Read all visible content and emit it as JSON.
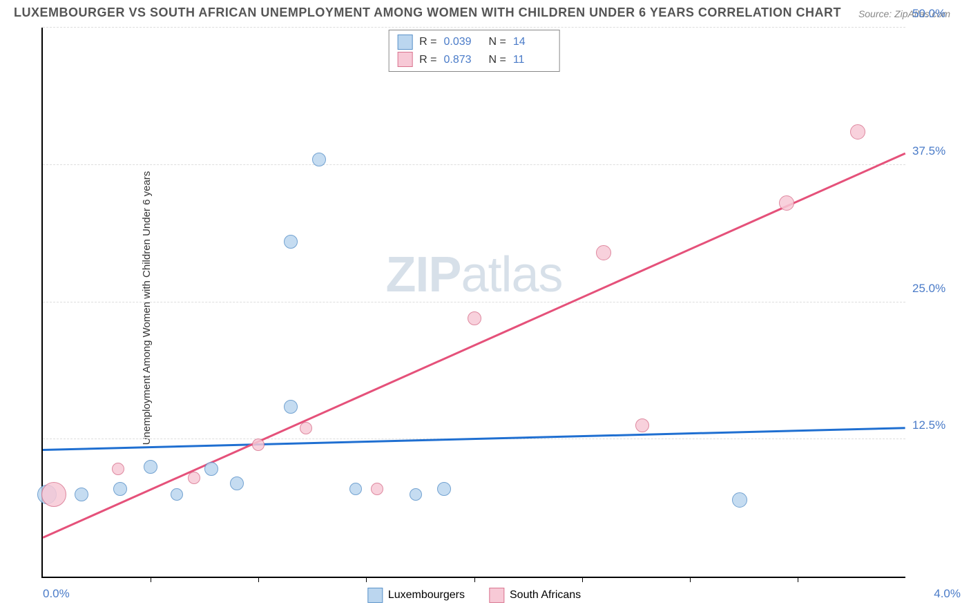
{
  "title": "LUXEMBOURGER VS SOUTH AFRICAN UNEMPLOYMENT AMONG WOMEN WITH CHILDREN UNDER 6 YEARS CORRELATION CHART",
  "source": "Source: ZipAtlas.com",
  "ylabel": "Unemployment Among Women with Children Under 6 years",
  "watermark_zip": "ZIP",
  "watermark_atlas": "atlas",
  "chart": {
    "type": "scatter",
    "xlim": [
      0,
      4.0
    ],
    "ylim": [
      0,
      50.0
    ],
    "x_tick_positions": [
      0.5,
      1.0,
      1.5,
      2.0,
      2.5,
      3.0,
      3.5
    ],
    "x_axis_min_label": "0.0%",
    "x_axis_max_label": "4.0%",
    "y_ticks": [
      {
        "v": 12.5,
        "label": "12.5%"
      },
      {
        "v": 25.0,
        "label": "25.0%"
      },
      {
        "v": 37.5,
        "label": "37.5%"
      },
      {
        "v": 50.0,
        "label": "50.0%"
      }
    ],
    "background_color": "#ffffff",
    "grid_color": "#dddddd",
    "axis_color": "#000000",
    "series": [
      {
        "name": "Luxembourgers",
        "fill_color": "#bbd6ef",
        "stroke_color": "#5a92c9",
        "trend_color": "#1f6fd1",
        "R": "0.039",
        "N": "14",
        "trend": {
          "x1": 0.0,
          "y1": 11.5,
          "x2": 4.0,
          "y2": 13.5
        },
        "points": [
          {
            "x": 0.02,
            "y": 7.5,
            "r": 14
          },
          {
            "x": 0.18,
            "y": 7.5,
            "r": 10
          },
          {
            "x": 0.36,
            "y": 8.0,
            "r": 10
          },
          {
            "x": 0.5,
            "y": 10.0,
            "r": 10
          },
          {
            "x": 0.62,
            "y": 7.5,
            "r": 9
          },
          {
            "x": 0.78,
            "y": 9.8,
            "r": 10
          },
          {
            "x": 0.9,
            "y": 8.5,
            "r": 10
          },
          {
            "x": 1.15,
            "y": 15.5,
            "r": 10
          },
          {
            "x": 1.15,
            "y": 30.5,
            "r": 10
          },
          {
            "x": 1.28,
            "y": 38.0,
            "r": 10
          },
          {
            "x": 1.45,
            "y": 8.0,
            "r": 9
          },
          {
            "x": 1.73,
            "y": 7.5,
            "r": 9
          },
          {
            "x": 1.86,
            "y": 8.0,
            "r": 10
          },
          {
            "x": 3.23,
            "y": 7.0,
            "r": 11
          }
        ]
      },
      {
        "name": "South Africans",
        "fill_color": "#f7c9d6",
        "stroke_color": "#d9748f",
        "trend_color": "#e5517a",
        "R": "0.873",
        "N": "11",
        "trend": {
          "x1": 0.0,
          "y1": 3.5,
          "x2": 4.0,
          "y2": 38.5
        },
        "points": [
          {
            "x": 0.05,
            "y": 7.5,
            "r": 18
          },
          {
            "x": 0.35,
            "y": 9.8,
            "r": 9
          },
          {
            "x": 0.7,
            "y": 9.0,
            "r": 9
          },
          {
            "x": 1.0,
            "y": 12.0,
            "r": 9
          },
          {
            "x": 1.22,
            "y": 13.5,
            "r": 9
          },
          {
            "x": 1.55,
            "y": 8.0,
            "r": 9
          },
          {
            "x": 2.0,
            "y": 23.5,
            "r": 10
          },
          {
            "x": 2.6,
            "y": 29.5,
            "r": 11
          },
          {
            "x": 2.78,
            "y": 13.8,
            "r": 10
          },
          {
            "x": 3.45,
            "y": 34.0,
            "r": 11
          },
          {
            "x": 3.78,
            "y": 40.5,
            "r": 11
          }
        ]
      }
    ]
  },
  "legend_bottom": [
    {
      "label": "Luxembourgers"
    },
    {
      "label": "South Africans"
    }
  ]
}
